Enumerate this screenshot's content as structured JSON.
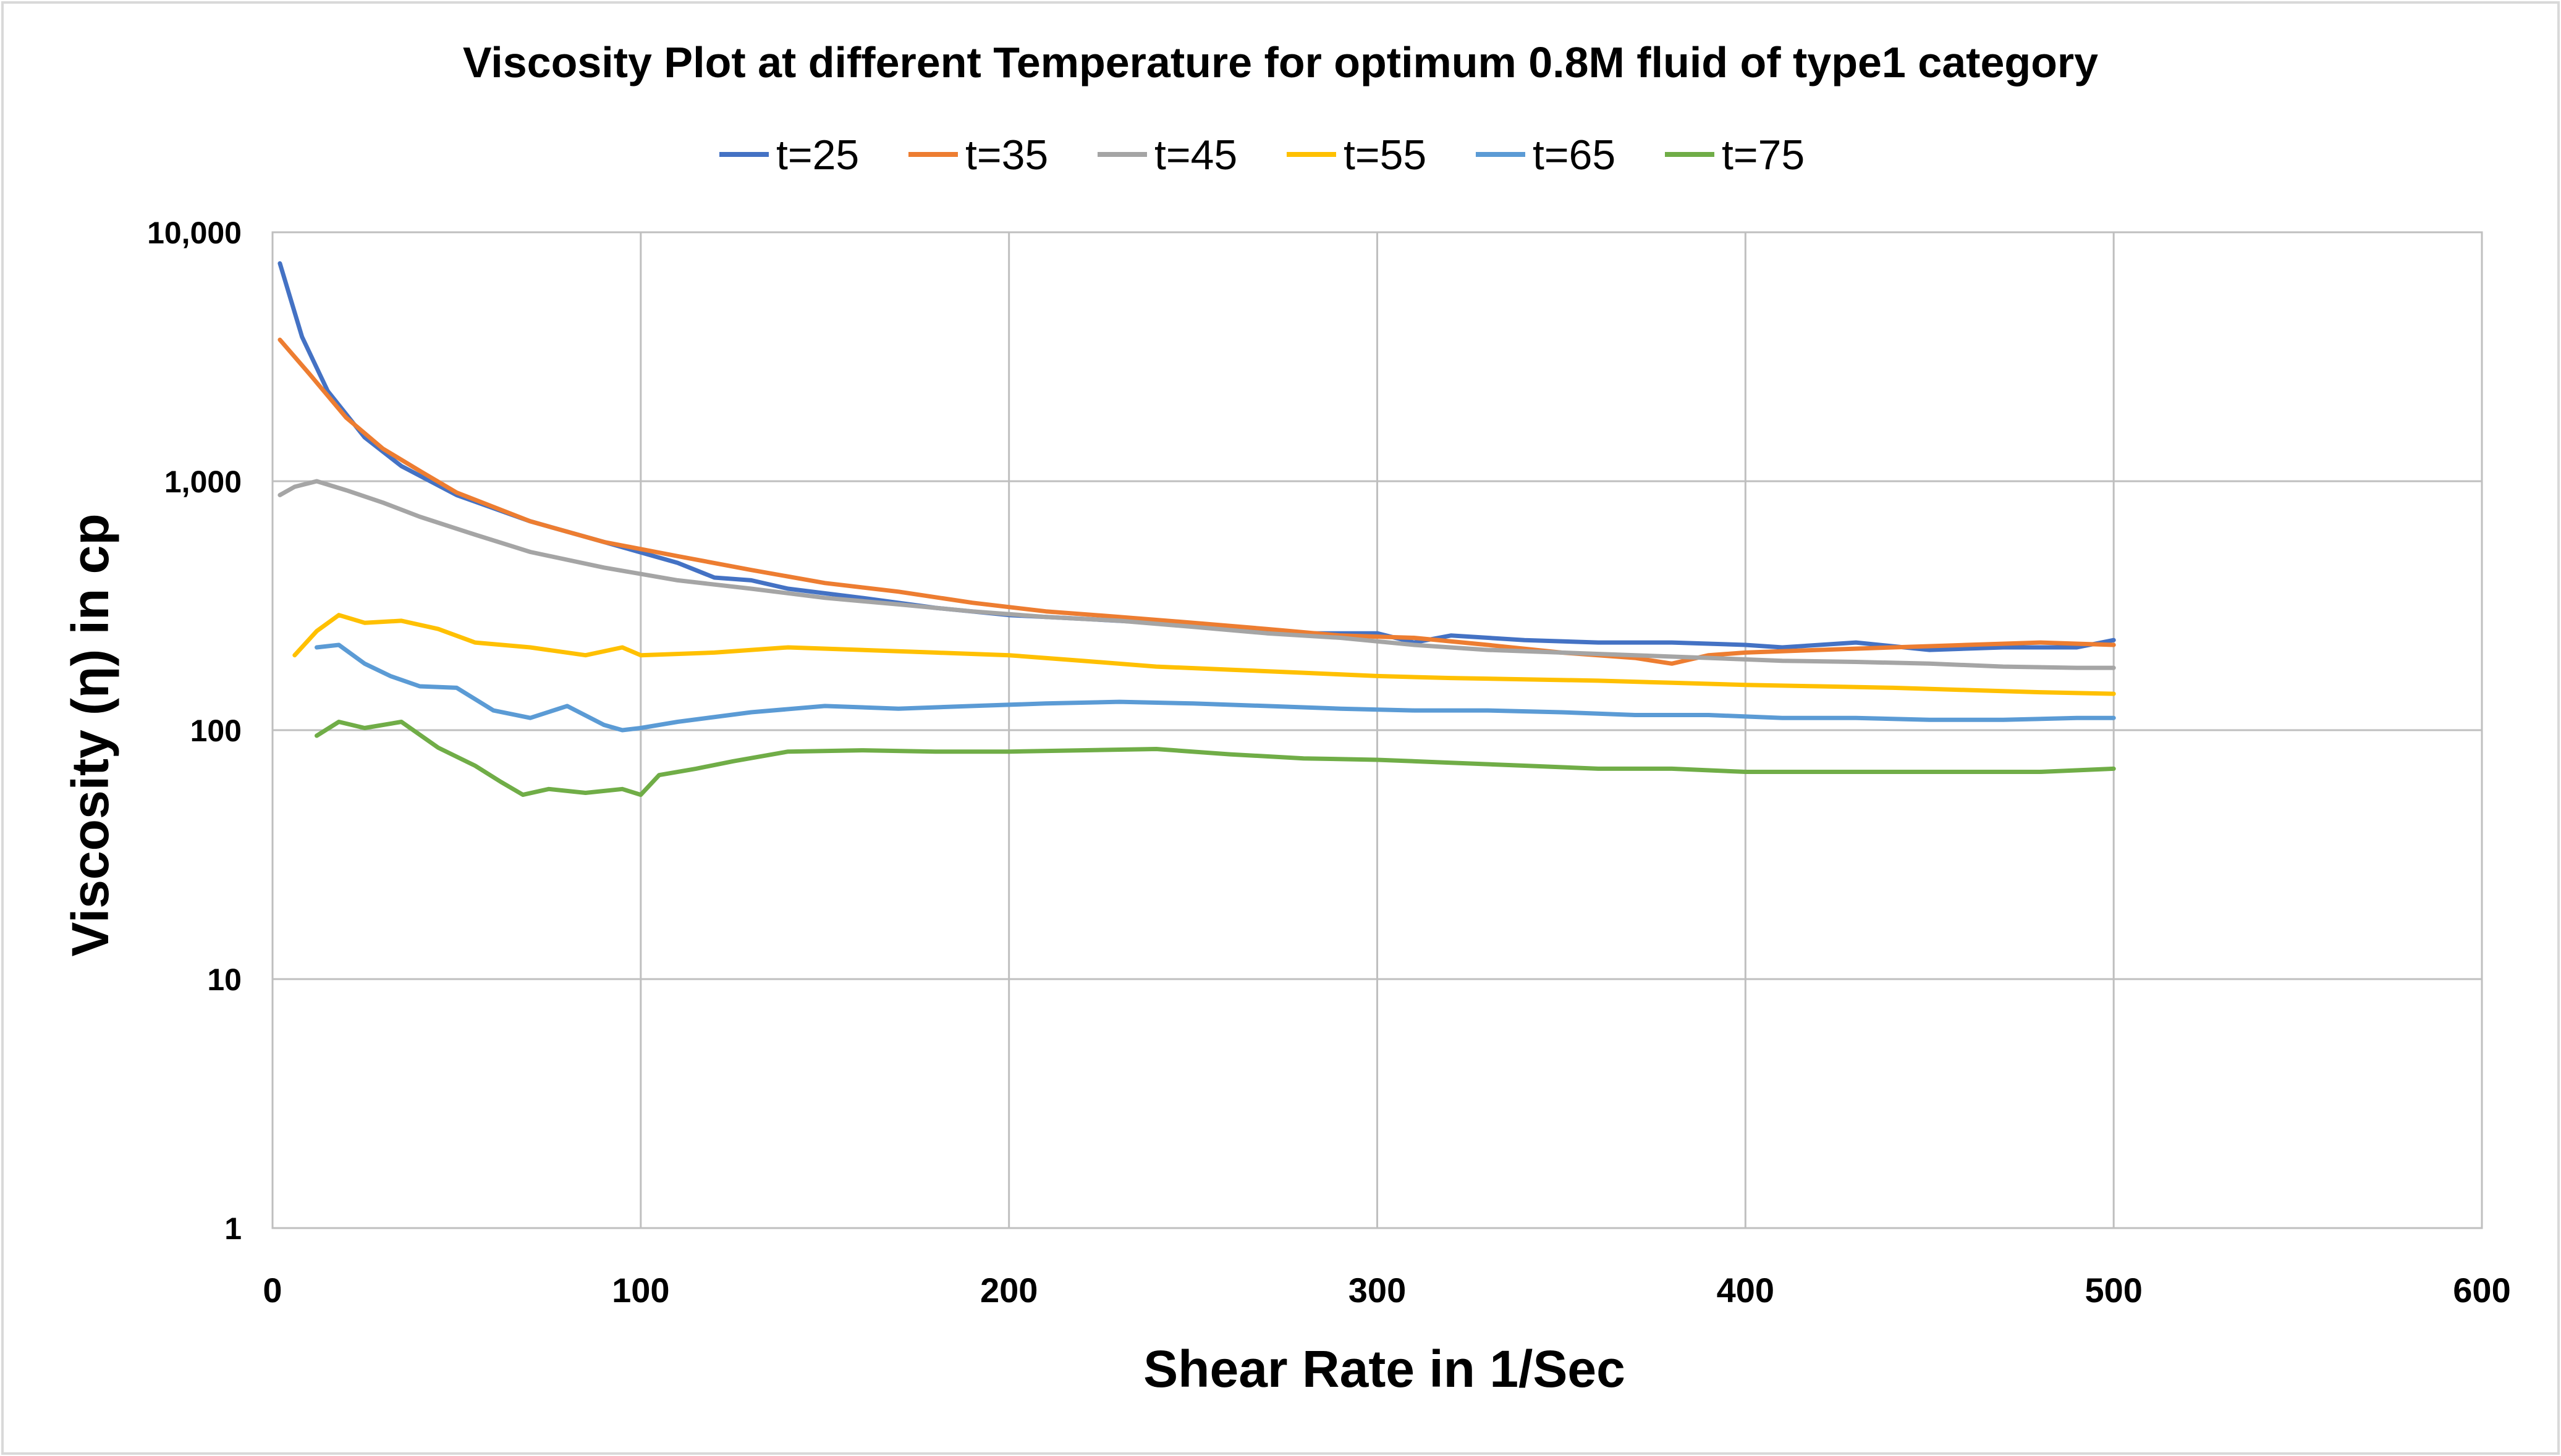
{
  "chart_data": {
    "type": "line",
    "title": "Viscosity Plot at different Temperature for optimum 0.8M fluid of type1 category",
    "xlabel": "Shear Rate  in 1/Sec",
    "ylabel": "Viscosity (η) in cp",
    "xlim": [
      0,
      600
    ],
    "ylim": [
      1,
      10000
    ],
    "yscale": "log",
    "x_ticks": [
      0,
      100,
      200,
      300,
      400,
      500,
      600
    ],
    "x_tick_labels": [
      "0",
      "100",
      "200",
      "300",
      "400",
      "500",
      "600"
    ],
    "y_ticks": [
      1,
      10,
      100,
      1000,
      10000
    ],
    "y_tick_labels": [
      "1",
      "10",
      "100",
      "1,000",
      "10,000"
    ],
    "grid": true,
    "legend_position": "top",
    "series": [
      {
        "name": "t=25",
        "color": "#4472C4",
        "x": [
          2,
          8,
          15,
          25,
          35,
          50,
          70,
          90,
          110,
          120,
          130,
          140,
          160,
          180,
          200,
          220,
          240,
          260,
          280,
          300,
          310,
          320,
          340,
          360,
          380,
          400,
          410,
          430,
          450,
          470,
          490,
          500
        ],
        "y": [
          7500,
          3800,
          2300,
          1500,
          1150,
          880,
          690,
          570,
          470,
          410,
          400,
          370,
          340,
          310,
          290,
          280,
          270,
          255,
          245,
          245,
          225,
          240,
          230,
          225,
          225,
          220,
          215,
          225,
          210,
          215,
          215,
          230
        ]
      },
      {
        "name": "t=35",
        "color": "#ED7D31",
        "x": [
          2,
          10,
          20,
          30,
          40,
          50,
          70,
          90,
          110,
          130,
          150,
          170,
          190,
          210,
          230,
          250,
          270,
          290,
          310,
          330,
          350,
          370,
          380,
          390,
          400,
          420,
          440,
          460,
          480,
          500
        ],
        "y": [
          3700,
          2700,
          1800,
          1350,
          1100,
          900,
          690,
          570,
          500,
          440,
          390,
          360,
          325,
          300,
          285,
          270,
          255,
          240,
          235,
          220,
          205,
          195,
          185,
          200,
          205,
          210,
          215,
          220,
          225,
          220
        ]
      },
      {
        "name": "t=45",
        "color": "#A5A5A5",
        "x": [
          2,
          6,
          12,
          20,
          30,
          40,
          55,
          70,
          90,
          110,
          130,
          150,
          170,
          190,
          210,
          230,
          250,
          270,
          290,
          310,
          330,
          350,
          370,
          390,
          410,
          430,
          450,
          470,
          490,
          500
        ],
        "y": [
          880,
          950,
          1000,
          920,
          820,
          720,
          610,
          520,
          450,
          400,
          370,
          340,
          320,
          300,
          285,
          275,
          260,
          245,
          235,
          220,
          210,
          205,
          200,
          195,
          190,
          188,
          185,
          180,
          178,
          178
        ]
      },
      {
        "name": "t=55",
        "color": "#FFC000",
        "x": [
          6,
          12,
          18,
          25,
          35,
          45,
          55,
          70,
          85,
          95,
          100,
          120,
          140,
          160,
          180,
          200,
          220,
          240,
          260,
          280,
          300,
          320,
          340,
          360,
          380,
          400,
          420,
          440,
          460,
          480,
          500
        ],
        "y": [
          200,
          250,
          290,
          270,
          275,
          255,
          225,
          215,
          200,
          215,
          200,
          205,
          215,
          210,
          205,
          200,
          190,
          180,
          175,
          170,
          165,
          162,
          160,
          158,
          155,
          152,
          150,
          148,
          145,
          142,
          140
        ]
      },
      {
        "name": "t=65",
        "color": "#5B9BD5",
        "x": [
          12,
          18,
          25,
          32,
          40,
          50,
          60,
          70,
          80,
          90,
          95,
          100,
          110,
          130,
          150,
          170,
          190,
          210,
          230,
          250,
          270,
          290,
          310,
          330,
          350,
          370,
          390,
          410,
          430,
          450,
          470,
          490,
          500
        ],
        "y": [
          215,
          220,
          185,
          165,
          150,
          148,
          120,
          112,
          125,
          105,
          100,
          102,
          108,
          118,
          125,
          122,
          125,
          128,
          130,
          128,
          125,
          122,
          120,
          120,
          118,
          115,
          115,
          112,
          112,
          110,
          110,
          112,
          112
        ]
      },
      {
        "name": "t=75",
        "color": "#70AD47",
        "x": [
          12,
          18,
          25,
          35,
          45,
          55,
          62,
          68,
          75,
          85,
          95,
          100,
          105,
          115,
          125,
          140,
          160,
          180,
          200,
          220,
          240,
          260,
          280,
          300,
          320,
          340,
          360,
          380,
          400,
          420,
          440,
          460,
          480,
          500
        ],
        "y": [
          95,
          108,
          102,
          108,
          85,
          72,
          62,
          55,
          58,
          56,
          58,
          55,
          66,
          70,
          75,
          82,
          83,
          82,
          82,
          83,
          84,
          80,
          77,
          76,
          74,
          72,
          70,
          70,
          68,
          68,
          68,
          68,
          68,
          70
        ]
      }
    ]
  }
}
